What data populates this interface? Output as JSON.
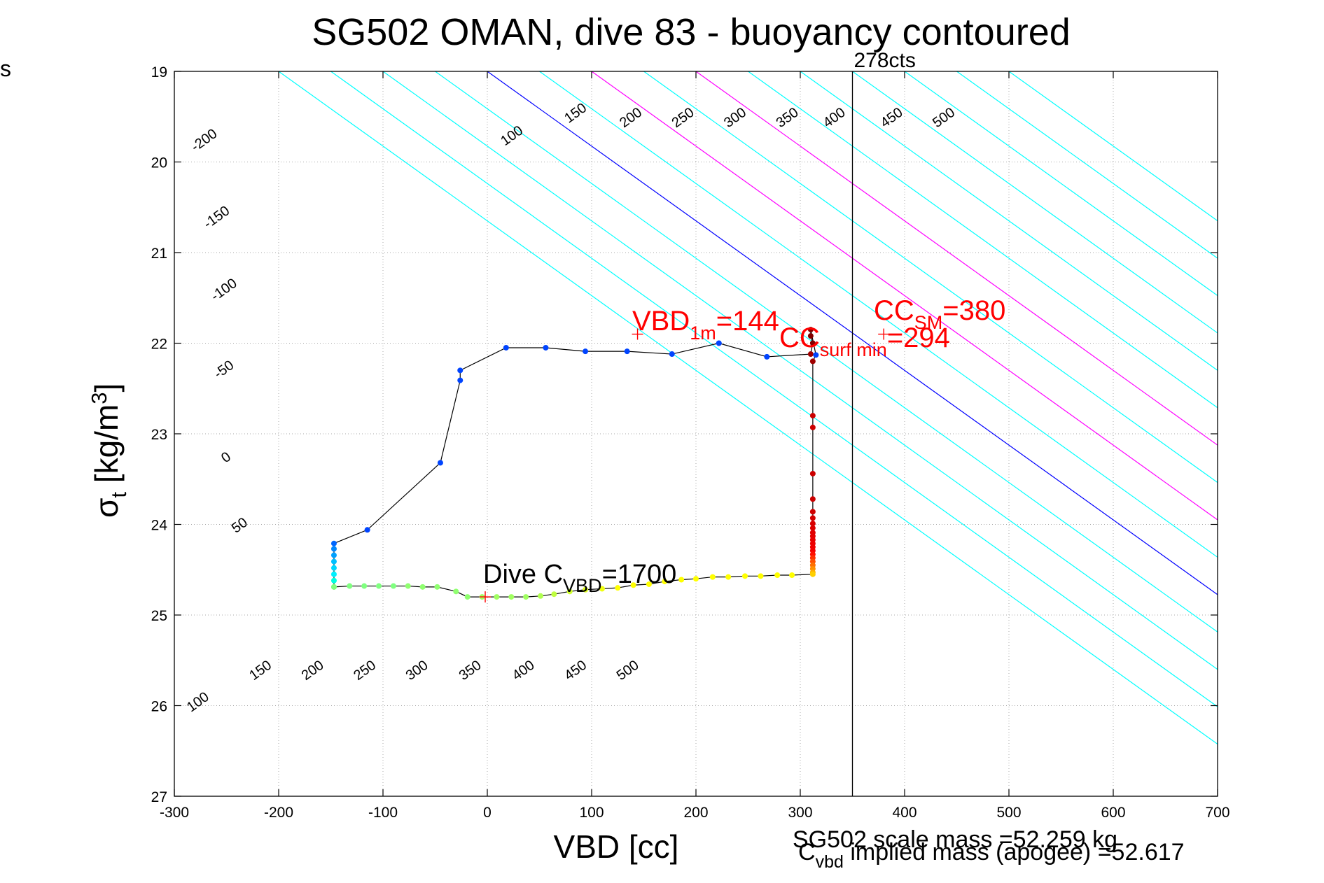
{
  "chart_data": {
    "type": "scatter",
    "title": "SG502 OMAN, dive 83 - buoyancy contoured",
    "xlabel": "VBD [cc]",
    "ylabel": {
      "base": "σ",
      "sub": "t",
      "rest": " [kg/m",
      "sup": "3",
      "close": "]"
    },
    "corner_text": "s",
    "xlim": [
      -300,
      700
    ],
    "ylim": [
      19,
      27
    ],
    "y_reversed": true,
    "grid": true,
    "x_ticks": [
      "-300",
      "-200",
      "-100",
      "0",
      "100",
      "200",
      "300",
      "400",
      "500",
      "600",
      "700"
    ],
    "y_ticks": [
      "19",
      "20",
      "21",
      "22",
      "23",
      "24",
      "25",
      "26",
      "27"
    ],
    "contour_slope": 0.00825,
    "contours": {
      "levels": [
        -200,
        -150,
        -100,
        -50,
        0,
        50,
        100,
        150,
        200,
        250,
        300,
        350,
        400,
        450,
        500
      ],
      "highlight": {
        "0": "#0000ff",
        "100": "#ff00ff",
        "200": "#ff00ff"
      },
      "default_color": "#00ffff",
      "labels_upper": [
        {
          "text": "-200",
          "x": -269,
          "y": 19.8
        },
        {
          "text": "-150",
          "x": -257,
          "y": 20.65
        },
        {
          "text": "-100",
          "x": -250,
          "y": 21.45
        },
        {
          "text": "-50",
          "x": -250,
          "y": 22.33
        },
        {
          "text": "0",
          "x": -248,
          "y": 23.3
        },
        {
          "text": "50",
          "x": -235,
          "y": 24.05
        },
        {
          "text": "100",
          "x": 26,
          "y": 19.75
        },
        {
          "text": "150",
          "x": 87,
          "y": 19.5
        },
        {
          "text": "200",
          "x": 140,
          "y": 19.55
        },
        {
          "text": "250",
          "x": 190,
          "y": 19.55
        },
        {
          "text": "300",
          "x": 240,
          "y": 19.55
        },
        {
          "text": "350",
          "x": 290,
          "y": 19.55
        },
        {
          "text": "400",
          "x": 335,
          "y": 19.55
        },
        {
          "text": "450",
          "x": 390,
          "y": 19.55
        },
        {
          "text": "500",
          "x": 440,
          "y": 19.55
        }
      ],
      "labels_lower": [
        {
          "text": "100",
          "x": -275,
          "y": 26.0
        },
        {
          "text": "150",
          "x": -215,
          "y": 25.65
        },
        {
          "text": "200",
          "x": -165,
          "y": 25.65
        },
        {
          "text": "250",
          "x": -115,
          "y": 25.65
        },
        {
          "text": "300",
          "x": -65,
          "y": 25.65
        },
        {
          "text": "350",
          "x": -14,
          "y": 25.65
        },
        {
          "text": "400",
          "x": 37,
          "y": 25.65
        },
        {
          "text": "450",
          "x": 87,
          "y": 25.65
        },
        {
          "text": "500",
          "x": 137,
          "y": 25.65
        }
      ]
    },
    "vertical_line": {
      "x": 350,
      "label": "278cts"
    },
    "track": [
      [
        -147,
        24.69
      ],
      [
        -147,
        24.62
      ],
      [
        -147,
        24.55
      ],
      [
        -147,
        24.48
      ],
      [
        -147,
        24.41
      ],
      [
        -147,
        24.34
      ],
      [
        -147,
        24.27
      ],
      [
        -147,
        24.21
      ],
      [
        -115,
        24.06
      ],
      [
        -45,
        23.32
      ],
      [
        -26,
        22.41
      ],
      [
        -26,
        22.3
      ],
      [
        18,
        22.05
      ],
      [
        56,
        22.05
      ],
      [
        94,
        22.09
      ],
      [
        134,
        22.09
      ],
      [
        177,
        22.12
      ],
      [
        222,
        22.0
      ],
      [
        268,
        22.15
      ],
      [
        310,
        22.12
      ],
      [
        312,
        22.0
      ],
      [
        310,
        21.92
      ],
      [
        310,
        21.85
      ],
      [
        315,
        22.13
      ],
      [
        312,
        22.2
      ],
      [
        312,
        22.8
      ],
      [
        312,
        22.93
      ],
      [
        312,
        23.44
      ],
      [
        312,
        23.72
      ],
      [
        312,
        23.86
      ],
      [
        312,
        23.93
      ],
      [
        312,
        23.99
      ],
      [
        312,
        24.04
      ],
      [
        312,
        24.09
      ],
      [
        312,
        24.13
      ],
      [
        312,
        24.17
      ],
      [
        312,
        24.21
      ],
      [
        312,
        24.25
      ],
      [
        312,
        24.29
      ],
      [
        312,
        24.33
      ],
      [
        312,
        24.37
      ],
      [
        312,
        24.41
      ],
      [
        312,
        24.45
      ],
      [
        312,
        24.49
      ],
      [
        312,
        24.53
      ],
      [
        312,
        24.55
      ],
      [
        292,
        24.56
      ],
      [
        278,
        24.56
      ],
      [
        262,
        24.57
      ],
      [
        247,
        24.57
      ],
      [
        231,
        24.58
      ],
      [
        216,
        24.58
      ],
      [
        200,
        24.6
      ],
      [
        186,
        24.61
      ],
      [
        170,
        24.63
      ],
      [
        155,
        24.66
      ],
      [
        140,
        24.67
      ],
      [
        125,
        24.7
      ],
      [
        110,
        24.71
      ],
      [
        94,
        24.72
      ],
      [
        79,
        24.74
      ],
      [
        64,
        24.77
      ],
      [
        51,
        24.79
      ],
      [
        37,
        24.8
      ],
      [
        23,
        24.8
      ],
      [
        9,
        24.8
      ],
      [
        -5,
        24.8
      ],
      [
        -19,
        24.8
      ],
      [
        -30,
        24.74
      ],
      [
        -48,
        24.69
      ],
      [
        -62,
        24.69
      ],
      [
        -76,
        24.68
      ],
      [
        -90,
        24.68
      ],
      [
        -104,
        24.68
      ],
      [
        -118,
        24.68
      ],
      [
        -132,
        24.68
      ],
      [
        -147,
        24.69
      ]
    ],
    "point_colors": [
      "#66ff66",
      "#00ffe0",
      "#00f0ff",
      "#00d8ff",
      "#00c0ff",
      "#00a0ff",
      "#0088ff",
      "#0066ff",
      "#0044ff",
      "#0044ff",
      "#0044ff",
      "#0044ff",
      "#0044ff",
      "#0044ff",
      "#0044ff",
      "#0044ff",
      "#0044ff",
      "#0044ff",
      "#0044ff",
      "#a00000",
      "#800000",
      "#800000",
      "#800000",
      "#0044ff",
      "#a00000",
      "#cc0000",
      "#cc0000",
      "#cc0000",
      "#cc0000",
      "#d00000",
      "#d40000",
      "#d80000",
      "#dc0000",
      "#e00000",
      "#e40000",
      "#e80000",
      "#ec0000",
      "#f00000",
      "#f40000",
      "#ff1000",
      "#ff3000",
      "#ff5000",
      "#ff7000",
      "#ff9000",
      "#ffb000",
      "#ffd000",
      "#ffff00",
      "#ffff00",
      "#ffff00",
      "#ffff00",
      "#ffff00",
      "#ffff00",
      "#ffff00",
      "#ffff00",
      "#ffff00",
      "#ffff00",
      "#ffff00",
      "#ffff00",
      "#f0ff10",
      "#e0ff20",
      "#d0ff30",
      "#c0ff40",
      "#b0ff50",
      "#a0ff60",
      "#a0ff60",
      "#a0ff60",
      "#a0ff60",
      "#90ff70",
      "#90ff70",
      "#90ff70",
      "#90ff70",
      "#90ff70",
      "#80ff80",
      "#80ff80",
      "#80ff80",
      "#80ff80",
      "#80ff80"
    ],
    "markers": [
      {
        "x": 144,
        "y": 21.9
      },
      {
        "x": 380,
        "y": 21.9
      },
      {
        "x": -2,
        "y": 24.8
      }
    ],
    "annotations": {
      "vbd1m": {
        "main": "VBD",
        "sub": "1m",
        "value": "=144"
      },
      "ccsm": {
        "main": "CC",
        "sub": "SM",
        "value": "=380"
      },
      "ccsurf": {
        "main": "CC",
        "sub": "surf min",
        "value": "=294"
      },
      "dive": {
        "main": "Dive C",
        "sub": "VBD",
        "value": "=1700"
      }
    },
    "footer": {
      "scale_mass": "SG502 scale mass =52.259 kg",
      "implied": {
        "main": "C",
        "sub": "vbd",
        "value": " implied mass (apogee) =52.617"
      }
    }
  }
}
